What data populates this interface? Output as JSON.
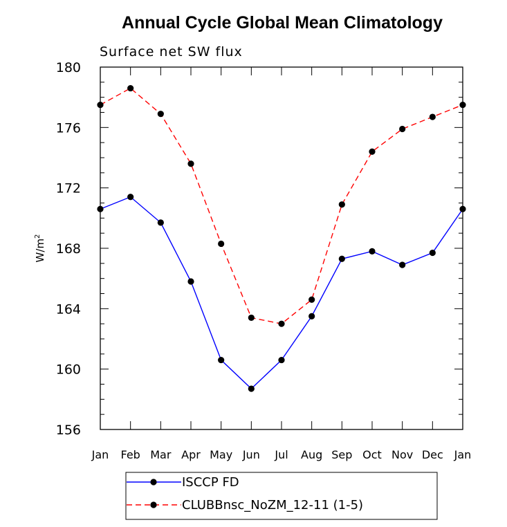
{
  "chart_data": {
    "type": "line",
    "title": "Annual Cycle Global Mean Climatology",
    "subtitle": "Surface net SW flux",
    "ylabel": "W/m",
    "ylabel_sup": "2",
    "xlabel": "",
    "categories": [
      "Jan",
      "Feb",
      "Mar",
      "Apr",
      "May",
      "Jun",
      "Jul",
      "Aug",
      "Sep",
      "Oct",
      "Nov",
      "Dec",
      "Jan"
    ],
    "ylim": [
      156,
      180
    ],
    "yticks": [
      156,
      160,
      164,
      168,
      172,
      176,
      180
    ],
    "grid": false,
    "legend_position": "bottom",
    "series": [
      {
        "name": "ISCCP FD",
        "color": "#0000ff",
        "dash": "solid",
        "values": [
          170.6,
          171.4,
          169.7,
          165.8,
          160.6,
          158.7,
          160.6,
          163.5,
          167.3,
          167.8,
          166.9,
          167.7,
          170.6
        ]
      },
      {
        "name": "CLUBBnsc_NoZM_12-11 (1-5)",
        "color": "#ff0000",
        "dash": "dashed",
        "values": [
          177.5,
          178.6,
          176.9,
          173.6,
          168.3,
          163.4,
          163.0,
          164.6,
          170.9,
          174.4,
          175.9,
          176.7,
          177.5
        ]
      }
    ]
  }
}
